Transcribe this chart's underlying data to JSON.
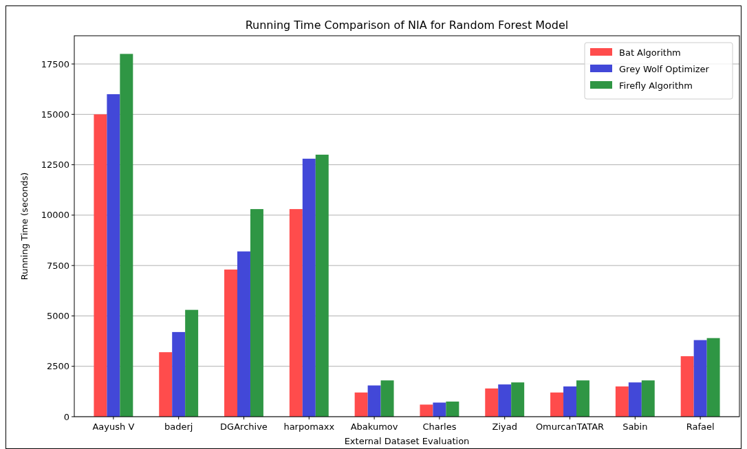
{
  "chart_data": {
    "type": "bar",
    "title": "Running Time Comparison of NIA for Random Forest Model",
    "xlabel": "External Dataset Evaluation",
    "ylabel": "Running Time (seconds)",
    "categories": [
      "Aayush V",
      "baderj",
      "DGArchive",
      "harpomaxx",
      "Abakumov",
      "Charles",
      "Ziyad",
      "OmurcanTATAR",
      "Sabin",
      "Rafael"
    ],
    "series": [
      {
        "name": "Bat Algorithm",
        "color": "#ff4c4c",
        "values": [
          15000,
          3200,
          7300,
          10300,
          1200,
          600,
          1400,
          1200,
          1500,
          3000
        ]
      },
      {
        "name": "Grey Wolf Optimizer",
        "color": "#4248d8",
        "values": [
          16000,
          4200,
          8200,
          12800,
          1550,
          700,
          1600,
          1500,
          1700,
          3800
        ]
      },
      {
        "name": "Firefly Algorithm",
        "color": "#2f9644",
        "values": [
          18000,
          5300,
          10300,
          13000,
          1800,
          750,
          1700,
          1800,
          1800,
          3900
        ]
      }
    ],
    "ylim": [
      0,
      18900
    ],
    "yticks": [
      0,
      2500,
      5000,
      7500,
      10000,
      12500,
      15000,
      17500
    ],
    "grid": "y",
    "legend": "top right"
  }
}
